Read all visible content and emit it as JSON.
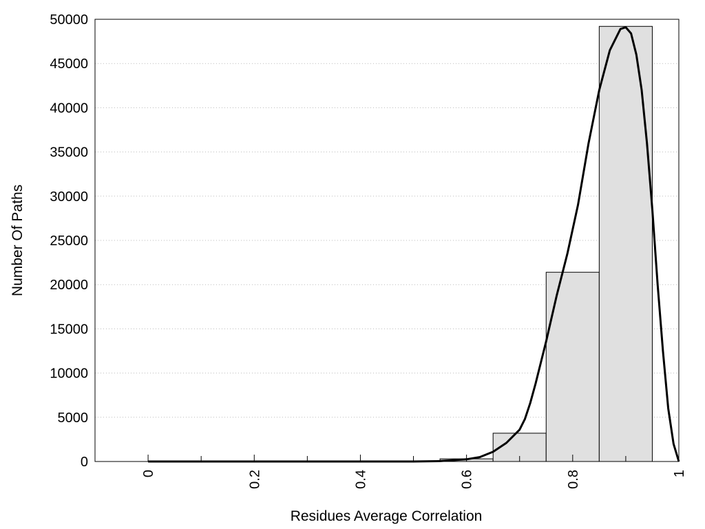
{
  "chart_data": {
    "type": "bar",
    "title": "",
    "xlabel": "Residues Average Correlation",
    "ylabel": "Number Of Paths",
    "xlim": [
      -0.1,
      1.0
    ],
    "ylim": [
      0,
      50000
    ],
    "x_ticks": [
      {
        "value": 0,
        "label": "0"
      },
      {
        "value": 0.2,
        "label": "0.2"
      },
      {
        "value": 0.4,
        "label": "0.4"
      },
      {
        "value": 0.6,
        "label": "0.6"
      },
      {
        "value": 0.8,
        "label": "0.8"
      },
      {
        "value": 1,
        "label": "1"
      }
    ],
    "x_minor_ticks": [
      0.1,
      0.3,
      0.5,
      0.7,
      0.9
    ],
    "y_ticks": [
      {
        "value": 0,
        "label": "0"
      },
      {
        "value": 5000,
        "label": "5000"
      },
      {
        "value": 10000,
        "label": "10000"
      },
      {
        "value": 15000,
        "label": "15000"
      },
      {
        "value": 20000,
        "label": "20000"
      },
      {
        "value": 25000,
        "label": "25000"
      },
      {
        "value": 30000,
        "label": "30000"
      },
      {
        "value": 35000,
        "label": "35000"
      },
      {
        "value": 40000,
        "label": "40000"
      },
      {
        "value": 45000,
        "label": "45000"
      },
      {
        "value": 50000,
        "label": "50000"
      }
    ],
    "grid": "horizontal dotted",
    "bars": [
      {
        "center": 0.0,
        "width": 0.1,
        "value": 0
      },
      {
        "center": 0.1,
        "width": 0.1,
        "value": 0
      },
      {
        "center": 0.2,
        "width": 0.1,
        "value": 0
      },
      {
        "center": 0.3,
        "width": 0.1,
        "value": 0
      },
      {
        "center": 0.4,
        "width": 0.1,
        "value": 0
      },
      {
        "center": 0.5,
        "width": 0.1,
        "value": 0
      },
      {
        "center": 0.6,
        "width": 0.1,
        "value": 300
      },
      {
        "center": 0.7,
        "width": 0.1,
        "value": 3200
      },
      {
        "center": 0.8,
        "width": 0.1,
        "value": 21400
      },
      {
        "center": 0.9,
        "width": 0.1,
        "value": 49200
      }
    ],
    "fit_curve": [
      [
        0.0,
        0
      ],
      [
        0.5,
        0
      ],
      [
        0.55,
        50
      ],
      [
        0.6,
        250
      ],
      [
        0.625,
        500
      ],
      [
        0.65,
        1100
      ],
      [
        0.675,
        2100
      ],
      [
        0.7,
        3600
      ],
      [
        0.71,
        4800
      ],
      [
        0.72,
        6600
      ],
      [
        0.73,
        8800
      ],
      [
        0.75,
        13600
      ],
      [
        0.77,
        18800
      ],
      [
        0.79,
        23500
      ],
      [
        0.81,
        29000
      ],
      [
        0.83,
        36000
      ],
      [
        0.85,
        42000
      ],
      [
        0.87,
        46500
      ],
      [
        0.89,
        48900
      ],
      [
        0.9,
        49100
      ],
      [
        0.91,
        48400
      ],
      [
        0.92,
        46000
      ],
      [
        0.93,
        42000
      ],
      [
        0.94,
        36000
      ],
      [
        0.95,
        28500
      ],
      [
        0.96,
        20000
      ],
      [
        0.97,
        12500
      ],
      [
        0.98,
        6000
      ],
      [
        0.99,
        2000
      ],
      [
        1.0,
        0
      ]
    ],
    "colors": {
      "bar_fill": "#e0e0e0",
      "bar_stroke": "#000000",
      "curve": "#000000",
      "grid": "#bbbbbb"
    }
  }
}
